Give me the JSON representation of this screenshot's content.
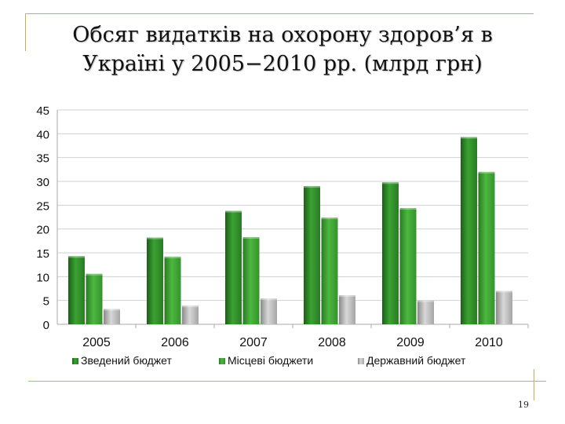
{
  "slide": {
    "title_line1": "Обсяг видатків на охорону здоров’я в",
    "title_line2": "Україні у 2005−2010 рр. (млрд грн)",
    "page_number": "19"
  },
  "colors": {
    "frame": "#c9ae4b",
    "series": [
      "#2f8a2a",
      "#3a9a30",
      "#b0b0b0"
    ]
  },
  "chart_data": {
    "type": "bar",
    "title": "",
    "xlabel": "",
    "ylabel": "",
    "categories": [
      "2005",
      "2006",
      "2007",
      "2008",
      "2009",
      "2010"
    ],
    "series": [
      {
        "name": "Зведений бюджет",
        "values": [
          14.3,
          18.2,
          23.8,
          29.0,
          29.8,
          39.3
        ]
      },
      {
        "name": "Місцеві бюджети",
        "values": [
          10.6,
          14.2,
          18.3,
          22.4,
          24.4,
          32.0
        ]
      },
      {
        "name": "Державний бюджет",
        "values": [
          3.2,
          3.9,
          5.4,
          6.1,
          5.0,
          7.0
        ]
      }
    ],
    "ylim": [
      0,
      45
    ],
    "yticks": [
      "0",
      "5",
      "10",
      "15",
      "20",
      "25",
      "30",
      "35",
      "40",
      "45"
    ],
    "grid": true,
    "legend": "bottom"
  }
}
